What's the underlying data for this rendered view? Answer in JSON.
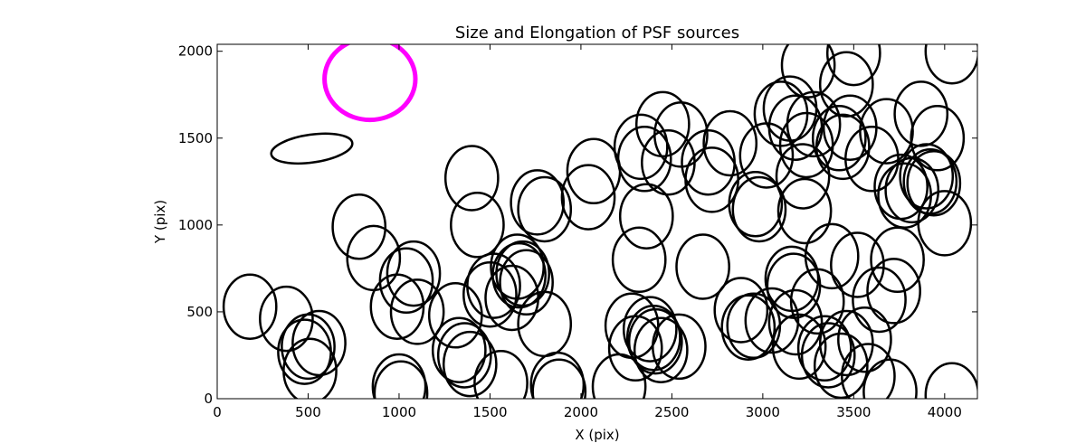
{
  "chart_data": {
    "type": "scatter",
    "title": "Size and Elongation of PSF sources",
    "xlabel": "X (pix)",
    "ylabel": "Y (pix)",
    "xlim": [
      0,
      4180
    ],
    "ylim": [
      0,
      2040
    ],
    "xticks": [
      0,
      500,
      1000,
      1500,
      2000,
      2500,
      3000,
      3500,
      4000
    ],
    "yticks": [
      0,
      500,
      1000,
      1500,
      2000
    ],
    "grid": false,
    "colors": {
      "sources": "#000000",
      "reference": "#ff00ff"
    },
    "reference_marker": {
      "x": 840,
      "y": 1840,
      "width": 500,
      "height": 470,
      "angle": 0
    },
    "elongated_marker": {
      "x": 520,
      "y": 1440,
      "width": 450,
      "height": 160,
      "angle": 8
    },
    "ellipse_width": 290,
    "ellipse_height": 370,
    "sources": [
      [
        180,
        530
      ],
      [
        380,
        460
      ],
      [
        500,
        300
      ],
      [
        560,
        320
      ],
      [
        480,
        270
      ],
      [
        510,
        160
      ],
      [
        780,
        990
      ],
      [
        860,
        810
      ],
      [
        990,
        530
      ],
      [
        1080,
        720
      ],
      [
        1040,
        680
      ],
      [
        1100,
        500
      ],
      [
        1000,
        70
      ],
      [
        1010,
        30
      ],
      [
        1310,
        480
      ],
      [
        1330,
        280
      ],
      [
        1360,
        250
      ],
      [
        1390,
        200
      ],
      [
        1400,
        1270
      ],
      [
        1430,
        1000
      ],
      [
        1500,
        600
      ],
      [
        1520,
        650
      ],
      [
        1560,
        90
      ],
      [
        1620,
        580
      ],
      [
        1650,
        760
      ],
      [
        1660,
        710
      ],
      [
        1680,
        720
      ],
      [
        1700,
        670
      ],
      [
        1760,
        1130
      ],
      [
        1800,
        1090
      ],
      [
        1800,
        430
      ],
      [
        1870,
        80
      ],
      [
        1880,
        40
      ],
      [
        2040,
        1160
      ],
      [
        2070,
        1310
      ],
      [
        2210,
        70
      ],
      [
        2280,
        420
      ],
      [
        2300,
        290
      ],
      [
        2320,
        800
      ],
      [
        2330,
        1450
      ],
      [
        2350,
        1380
      ],
      [
        2360,
        1050
      ],
      [
        2380,
        400
      ],
      [
        2400,
        350
      ],
      [
        2410,
        330
      ],
      [
        2440,
        280
      ],
      [
        2450,
        1580
      ],
      [
        2480,
        1360
      ],
      [
        2550,
        1520
      ],
      [
        2540,
        300
      ],
      [
        2670,
        760
      ],
      [
        2700,
        1360
      ],
      [
        2720,
        1260
      ],
      [
        2820,
        1470
      ],
      [
        2880,
        510
      ],
      [
        2920,
        410
      ],
      [
        2950,
        420
      ],
      [
        2960,
        1120
      ],
      [
        2980,
        1090
      ],
      [
        3020,
        1400
      ],
      [
        3050,
        450
      ],
      [
        3100,
        1640
      ],
      [
        3150,
        1670
      ],
      [
        3160,
        690
      ],
      [
        3170,
        650
      ],
      [
        3180,
        440
      ],
      [
        3180,
        1560
      ],
      [
        3200,
        300
      ],
      [
        3220,
        1280
      ],
      [
        3230,
        1080
      ],
      [
        3240,
        1460
      ],
      [
        3250,
        1920
      ],
      [
        3280,
        1580
      ],
      [
        3300,
        560
      ],
      [
        3340,
        290
      ],
      [
        3360,
        250
      ],
      [
        3380,
        820
      ],
      [
        3420,
        1500
      ],
      [
        3430,
        190
      ],
      [
        3440,
        1450
      ],
      [
        3460,
        320
      ],
      [
        3460,
        1810
      ],
      [
        3480,
        1560
      ],
      [
        3500,
        1990
      ],
      [
        3520,
        770
      ],
      [
        3560,
        340
      ],
      [
        3580,
        130
      ],
      [
        3600,
        1380
      ],
      [
        3640,
        570
      ],
      [
        3680,
        1540
      ],
      [
        3700,
        40
      ],
      [
        3720,
        620
      ],
      [
        3740,
        800
      ],
      [
        3760,
        1220
      ],
      [
        3780,
        1170
      ],
      [
        3820,
        1200
      ],
      [
        3870,
        1640
      ],
      [
        3900,
        1280
      ],
      [
        3920,
        1250
      ],
      [
        3940,
        1240
      ],
      [
        3960,
        1500
      ],
      [
        4000,
        1010
      ],
      [
        4040,
        2000
      ],
      [
        4040,
        20
      ]
    ]
  }
}
